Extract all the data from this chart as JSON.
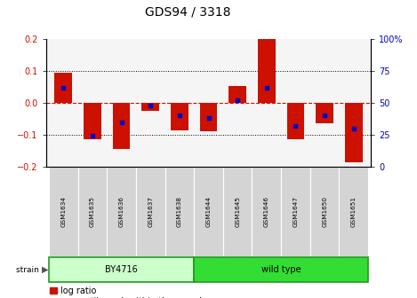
{
  "title": "GDS94 / 3318",
  "samples": [
    "GSM1634",
    "GSM1635",
    "GSM1636",
    "GSM1637",
    "GSM1638",
    "GSM1644",
    "GSM1645",
    "GSM1646",
    "GSM1647",
    "GSM1650",
    "GSM1651"
  ],
  "log_ratios": [
    0.095,
    -0.113,
    -0.145,
    -0.025,
    -0.085,
    -0.088,
    0.052,
    0.198,
    -0.115,
    -0.065,
    -0.185
  ],
  "percentile_ranks": [
    62,
    24,
    35,
    48,
    40,
    38,
    52,
    62,
    32,
    40,
    30
  ],
  "strain_groups": [
    {
      "label": "BY4716",
      "start": 0,
      "end": 5,
      "color": "#ccffcc"
    },
    {
      "label": "wild type",
      "start": 5,
      "end": 11,
      "color": "#33dd33"
    }
  ],
  "ylim": [
    -0.2,
    0.2
  ],
  "yticks_left": [
    -0.2,
    -0.1,
    0.0,
    0.1,
    0.2
  ],
  "bar_color": "#cc1100",
  "dot_color": "#0000cc",
  "zero_line_color": "#cc1100",
  "grid_color": "#000000",
  "plot_bg": "#f5f5f5",
  "title_fontsize": 10,
  "tick_fontsize": 7,
  "label_fontsize": 5.5,
  "legend_fontsize": 7
}
